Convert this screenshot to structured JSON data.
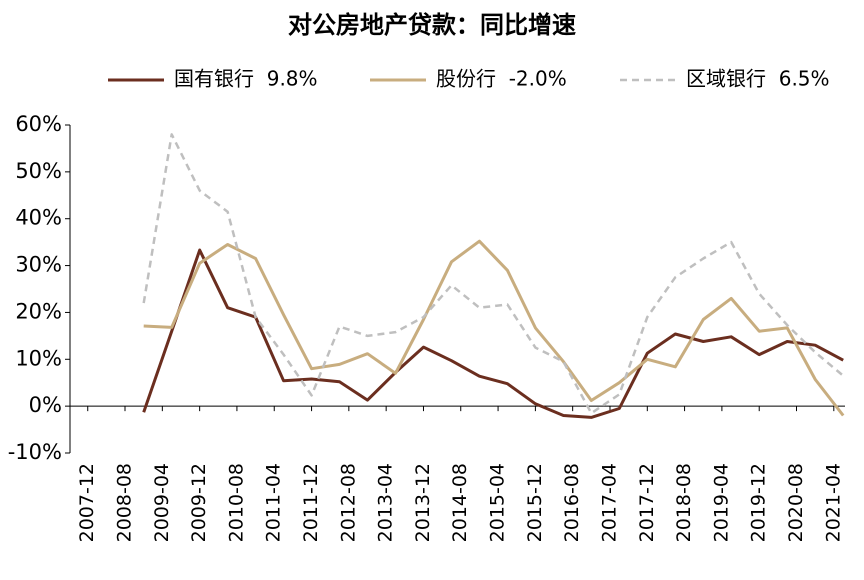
{
  "chart_data": {
    "type": "line",
    "title": "对公房地产贷款：同比增速",
    "x": [
      2008.917,
      2009.417,
      2009.917,
      2010.417,
      2010.917,
      2011.417,
      2011.917,
      2012.417,
      2012.917,
      2013.417,
      2013.917,
      2014.417,
      2014.917,
      2015.417,
      2015.917,
      2016.417,
      2016.917,
      2017.417,
      2017.917,
      2018.417,
      2018.917,
      2019.417,
      2019.917,
      2020.417,
      2020.917,
      2021.417
    ],
    "series": [
      {
        "name": "国有银行  9.8%",
        "color": "#6b2e1f",
        "dash": false,
        "values": [
          -1.3,
          16,
          33.3,
          21,
          19,
          5.4,
          5.8,
          5.2,
          1.3,
          7.2,
          12.6,
          9.7,
          6.4,
          4.8,
          0.5,
          -2.0,
          -2.4,
          -0.5,
          11.3,
          15.4,
          13.8,
          14.8,
          11,
          13.8,
          13.0,
          9.8
        ]
      },
      {
        "name": "股份行  -2.0%",
        "color": "#c8ad7f",
        "dash": false,
        "values": [
          17.1,
          16.8,
          30.5,
          34.5,
          31.5,
          19.5,
          8.0,
          8.9,
          11.2,
          7.0,
          18.5,
          30.8,
          35.2,
          29,
          16.7,
          9.5,
          1.2,
          5,
          10,
          8.4,
          18.5,
          23,
          16,
          16.7,
          5.7,
          -2.0
        ]
      },
      {
        "name": "区域银行  6.5%",
        "color": "#bfbfbf",
        "dash": true,
        "values": [
          22,
          58,
          46,
          41.5,
          19,
          11,
          2.3,
          17,
          15,
          15.8,
          19,
          25.8,
          21,
          21.7,
          12.5,
          9.5,
          -1.5,
          2.5,
          19,
          27.5,
          31.5,
          35,
          24,
          17.3,
          11.5,
          6.5
        ]
      }
    ],
    "xlim": [
      2007.6,
      2021.45
    ],
    "xticks": [
      {
        "value": 2007.917,
        "label": "2007-12"
      },
      {
        "value": 2008.583,
        "label": "2008-08"
      },
      {
        "value": 2009.25,
        "label": "2009-04"
      },
      {
        "value": 2009.917,
        "label": "2009-12"
      },
      {
        "value": 2010.583,
        "label": "2010-08"
      },
      {
        "value": 2011.25,
        "label": "2011-04"
      },
      {
        "value": 2011.917,
        "label": "2011-12"
      },
      {
        "value": 2012.583,
        "label": "2012-08"
      },
      {
        "value": 2013.25,
        "label": "2013-04"
      },
      {
        "value": 2013.917,
        "label": "2013-12"
      },
      {
        "value": 2014.583,
        "label": "2014-08"
      },
      {
        "value": 2015.25,
        "label": "2015-04"
      },
      {
        "value": 2015.917,
        "label": "2015-12"
      },
      {
        "value": 2016.583,
        "label": "2016-08"
      },
      {
        "value": 2017.25,
        "label": "2017-04"
      },
      {
        "value": 2017.917,
        "label": "2017-12"
      },
      {
        "value": 2018.583,
        "label": "2018-08"
      },
      {
        "value": 2019.25,
        "label": "2019-04"
      },
      {
        "value": 2019.917,
        "label": "2019-12"
      },
      {
        "value": 2020.583,
        "label": "2020-08"
      },
      {
        "value": 2021.25,
        "label": "2021-04"
      }
    ],
    "ylim": [
      -10,
      60
    ],
    "yticks": [
      {
        "value": -10,
        "label": "-10%"
      },
      {
        "value": 0,
        "label": "0%"
      },
      {
        "value": 10,
        "label": "10%"
      },
      {
        "value": 20,
        "label": "20%"
      },
      {
        "value": 30,
        "label": "30%"
      },
      {
        "value": 40,
        "label": "40%"
      },
      {
        "value": 50,
        "label": "50%"
      },
      {
        "value": 60,
        "label": "60%"
      }
    ],
    "grid": false,
    "legend": "top"
  }
}
